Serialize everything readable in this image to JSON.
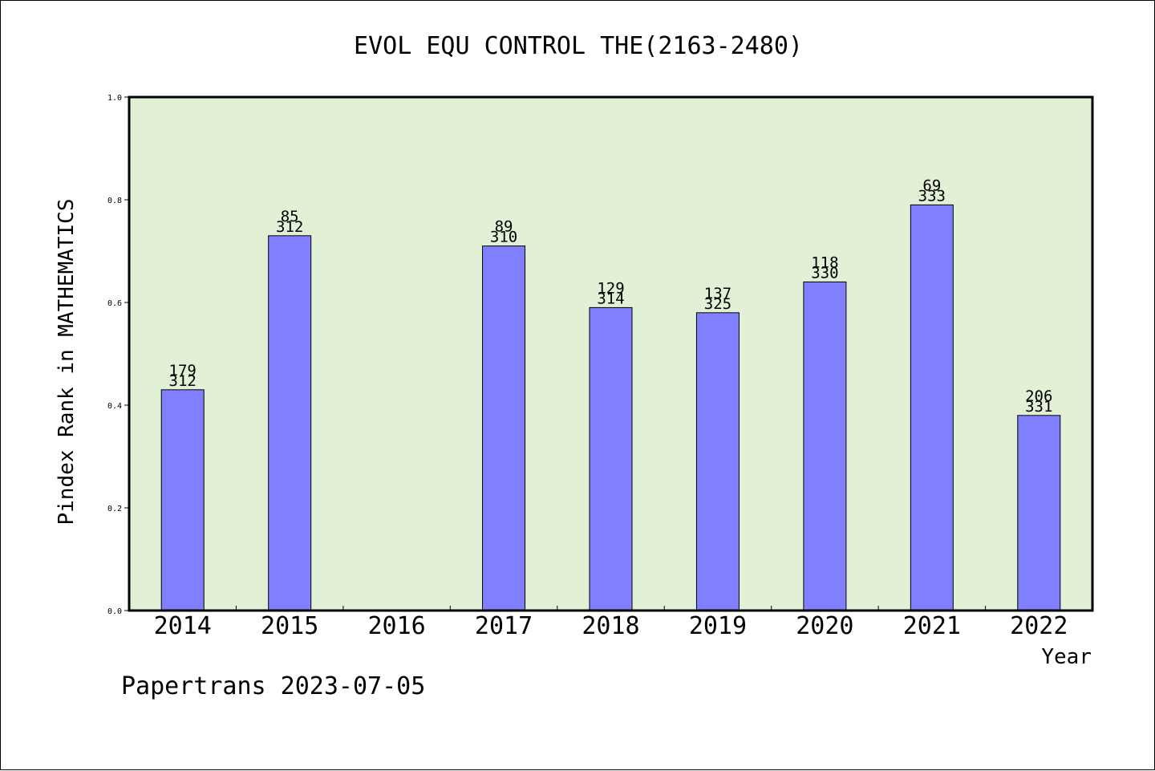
{
  "chart_data": {
    "type": "bar",
    "title": "EVOL EQU CONTROL THE(2163-2480)",
    "xlabel": "Year",
    "ylabel": "Pindex Rank in MATHEMATICS",
    "categories": [
      "2014",
      "2015",
      "2016",
      "2017",
      "2018",
      "2019",
      "2020",
      "2021",
      "2022"
    ],
    "values": [
      0.43,
      0.73,
      null,
      0.71,
      0.59,
      0.58,
      0.64,
      0.79,
      0.38
    ],
    "labels_top": [
      "179",
      "85",
      "",
      "89",
      "129",
      "137",
      "118",
      "69",
      "206"
    ],
    "labels_bottom": [
      "312",
      "312",
      "",
      "310",
      "314",
      "325",
      "330",
      "333",
      "331"
    ],
    "ylim": [
      0,
      1.0
    ],
    "yticks": [
      "0.0",
      "0.2",
      "0.4",
      "0.6",
      "0.8",
      "1.0"
    ],
    "grid": false,
    "legend": "none",
    "colors": {
      "bar": "#8080ff",
      "plot_bg": "#e2f0d6",
      "axis": "#000000"
    }
  },
  "footer": {
    "credit": "Papertrans 2023-07-05"
  }
}
